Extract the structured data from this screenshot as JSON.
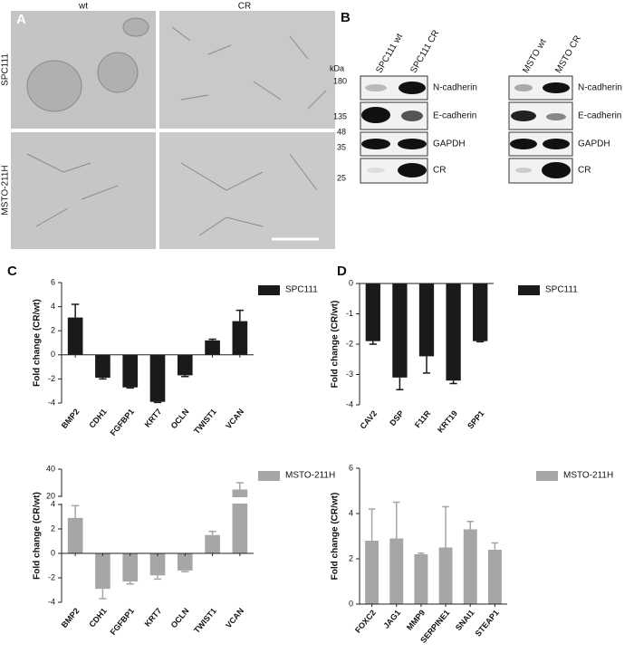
{
  "figure": {
    "panels": [
      "A",
      "B",
      "C",
      "D"
    ],
    "micrograph": {
      "columns": [
        "wt",
        "CR"
      ],
      "rows": [
        "SPC111",
        "MSTO-211H"
      ]
    },
    "blot": {
      "unit": "kDa",
      "markers": [
        180,
        135,
        48,
        35,
        25
      ],
      "blots": [
        {
          "columns": [
            "SPC111 wt",
            "SPC111 CR"
          ],
          "rows": [
            "N-cadherin",
            "E-cadherin",
            "GAPDH",
            "CR"
          ]
        },
        {
          "columns": [
            "MSTO wt",
            "MSTO CR"
          ],
          "rows": [
            "N-cadherin",
            "E-cadherin",
            "GAPDH",
            "CR"
          ]
        }
      ]
    }
  },
  "chart_data": [
    {
      "type": "bar",
      "ylabel": "Fold change (CR/wt)",
      "categories": [
        "BMP2",
        "CDH1",
        "FGFBP1",
        "KRT7",
        "OCLN",
        "TWIST1",
        "VCAN"
      ],
      "series": [
        {
          "name": "SPC111",
          "color": "#1a1a1a",
          "values": [
            3.1,
            -1.9,
            -2.7,
            -3.9,
            -1.7,
            1.2,
            2.8
          ],
          "errors": [
            1.1,
            0.1,
            0.05,
            0.05,
            0.1,
            0.1,
            0.9
          ]
        }
      ],
      "ylim": [
        -4,
        6
      ],
      "yticks": [
        -4,
        -2,
        0,
        2,
        4,
        6
      ]
    },
    {
      "type": "bar",
      "ylabel": "Fold change (CR/wt)",
      "categories": [
        "CAV2",
        "DSP",
        "F11R",
        "KRT19",
        "SPP1"
      ],
      "series": [
        {
          "name": "SPC111",
          "color": "#1a1a1a",
          "values": [
            -1.9,
            -3.1,
            -2.4,
            -3.2,
            -1.9
          ],
          "errors": [
            0.1,
            0.4,
            0.55,
            0.1,
            0.02
          ]
        }
      ],
      "ylim": [
        -4,
        0
      ],
      "yticks": [
        0,
        -1,
        -2,
        -3,
        -4
      ]
    },
    {
      "type": "bar",
      "ylabel": "Fold change (CR/wt)",
      "categories": [
        "BMP2",
        "CDH1",
        "FGFBP1",
        "KRT7",
        "OCLN",
        "TWIST1",
        "VCAN"
      ],
      "series": [
        {
          "name": "MSTO-211H",
          "color": "#a6a6a6",
          "values": [
            2.9,
            -2.9,
            -2.3,
            -1.8,
            -1.4,
            1.5,
            25
          ],
          "errors": [
            1.0,
            0.8,
            0.2,
            0.3,
            0.1,
            0.3,
            5
          ]
        }
      ],
      "ylim": [
        -4,
        40
      ],
      "ybreak": [
        4,
        20
      ],
      "yticks": [
        -4,
        -2,
        0,
        2,
        4,
        20,
        40
      ]
    },
    {
      "type": "bar",
      "ylabel": "Fold change (CR/wt)",
      "categories": [
        "FOXC2",
        "JAG1",
        "MMP9",
        "SERPINE1",
        "SNAI1",
        "STEAP1"
      ],
      "series": [
        {
          "name": "MSTO-211H",
          "color": "#a6a6a6",
          "values": [
            2.8,
            2.9,
            2.2,
            2.5,
            3.3,
            2.4
          ],
          "errors": [
            1.4,
            1.6,
            0.05,
            1.8,
            0.35,
            0.3
          ]
        }
      ],
      "ylim": [
        0,
        6
      ],
      "yticks": [
        0,
        2,
        4,
        6
      ]
    }
  ]
}
